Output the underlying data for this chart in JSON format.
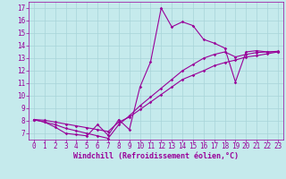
{
  "xlabel": "Windchill (Refroidissement éolien,°C)",
  "background_color": "#c5eaec",
  "line_color": "#990099",
  "grid_color": "#a8d4d8",
  "x_values": [
    0,
    1,
    2,
    3,
    4,
    5,
    6,
    7,
    8,
    9,
    10,
    11,
    12,
    13,
    14,
    15,
    16,
    17,
    18,
    19,
    20,
    21,
    22,
    23
  ],
  "line1_y": [
    8.1,
    7.9,
    7.5,
    7.0,
    6.9,
    6.8,
    7.7,
    6.85,
    8.1,
    7.3,
    10.7,
    12.7,
    17.0,
    15.5,
    15.9,
    15.6,
    14.5,
    14.2,
    13.8,
    11.1,
    13.5,
    13.6,
    13.5,
    13.5
  ],
  "line2_y": [
    8.1,
    8.05,
    7.9,
    7.75,
    7.6,
    7.45,
    7.3,
    7.15,
    7.9,
    8.3,
    8.9,
    9.5,
    10.1,
    10.7,
    11.3,
    11.65,
    12.0,
    12.4,
    12.65,
    12.85,
    13.1,
    13.2,
    13.35,
    13.5
  ],
  "line3_y": [
    8.1,
    7.9,
    7.7,
    7.4,
    7.2,
    7.0,
    6.8,
    6.6,
    7.7,
    8.4,
    9.2,
    9.9,
    10.6,
    11.3,
    12.0,
    12.5,
    13.0,
    13.3,
    13.5,
    13.1,
    13.3,
    13.45,
    13.5,
    13.55
  ],
  "ylim": [
    6.5,
    17.5
  ],
  "xlim": [
    -0.5,
    23.5
  ],
  "yticks": [
    7,
    8,
    9,
    10,
    11,
    12,
    13,
    14,
    15,
    16,
    17
  ],
  "xticks": [
    0,
    1,
    2,
    3,
    4,
    5,
    6,
    7,
    8,
    9,
    10,
    11,
    12,
    13,
    14,
    15,
    16,
    17,
    18,
    19,
    20,
    21,
    22,
    23
  ],
  "xlabel_fontsize": 6,
  "tick_fontsize": 5.5,
  "marker_size": 1.8,
  "line_width": 0.8
}
